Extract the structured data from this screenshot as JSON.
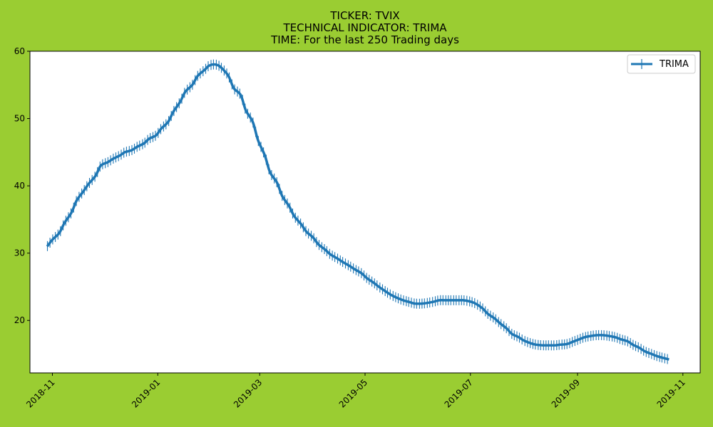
{
  "chart_data": {
    "type": "line",
    "title_lines": [
      "TICKER:  TVIX",
      "TECHNICAL INDICATOR:  TRIMA",
      "TIME: For the last 250 Trading days"
    ],
    "xlabel": "",
    "ylabel": "",
    "ylim": [
      12.2,
      60
    ],
    "xlim": [
      "2018-10-19",
      "2019-11-11"
    ],
    "yticks": [
      20,
      30,
      40,
      50,
      60
    ],
    "xticks": [
      "2018-11",
      "2019-01",
      "2019-03",
      "2019-05",
      "2019-07",
      "2019-09",
      "2019-11"
    ],
    "legend": {
      "position": "top-right",
      "entries": [
        "TRIMA"
      ]
    },
    "colors": {
      "background": "#9acd32",
      "plot_area": "#ffffff",
      "series": "#1f77b4"
    },
    "marker": "vertical-line",
    "grid": false,
    "series": [
      {
        "name": "TRIMA",
        "points": [
          [
            "2018-10-29",
            31.0
          ],
          [
            "2018-11-01",
            32.0
          ],
          [
            "2018-11-05",
            33.0
          ],
          [
            "2018-11-08",
            34.5
          ],
          [
            "2018-11-12",
            36.0
          ],
          [
            "2018-11-15",
            37.8
          ],
          [
            "2018-11-19",
            39.2
          ],
          [
            "2018-11-22",
            40.3
          ],
          [
            "2018-11-26",
            41.5
          ],
          [
            "2018-11-29",
            43.0
          ],
          [
            "2018-12-03",
            43.5
          ],
          [
            "2018-12-06",
            44.0
          ],
          [
            "2018-12-10",
            44.5
          ],
          [
            "2018-12-13",
            45.0
          ],
          [
            "2018-12-17",
            45.3
          ],
          [
            "2018-12-20",
            45.8
          ],
          [
            "2018-12-24",
            46.3
          ],
          [
            "2018-12-27",
            47.0
          ],
          [
            "2018-12-31",
            47.5
          ],
          [
            "2019-01-03",
            48.5
          ],
          [
            "2019-01-07",
            49.5
          ],
          [
            "2019-01-10",
            51.0
          ],
          [
            "2019-01-14",
            52.5
          ],
          [
            "2019-01-17",
            54.0
          ],
          [
            "2019-01-21",
            55.0
          ],
          [
            "2019-01-24",
            56.3
          ],
          [
            "2019-01-28",
            57.2
          ],
          [
            "2019-01-31",
            57.9
          ],
          [
            "2019-02-04",
            58.0
          ],
          [
            "2019-02-07",
            57.5
          ],
          [
            "2019-02-11",
            56.3
          ],
          [
            "2019-02-14",
            54.5
          ],
          [
            "2019-02-18",
            53.5
          ],
          [
            "2019-02-21",
            51.2
          ],
          [
            "2019-02-25",
            49.5
          ],
          [
            "2019-02-28",
            46.8
          ],
          [
            "2019-03-04",
            44.5
          ],
          [
            "2019-03-07",
            42.0
          ],
          [
            "2019-03-11",
            40.5
          ],
          [
            "2019-03-14",
            38.5
          ],
          [
            "2019-03-18",
            37.0
          ],
          [
            "2019-03-21",
            35.5
          ],
          [
            "2019-03-25",
            34.3
          ],
          [
            "2019-03-28",
            33.2
          ],
          [
            "2019-04-01",
            32.3
          ],
          [
            "2019-04-04",
            31.3
          ],
          [
            "2019-04-08",
            30.5
          ],
          [
            "2019-04-11",
            29.8
          ],
          [
            "2019-04-15",
            29.2
          ],
          [
            "2019-04-18",
            28.7
          ],
          [
            "2019-04-22",
            28.1
          ],
          [
            "2019-04-25",
            27.6
          ],
          [
            "2019-04-29",
            27.0
          ],
          [
            "2019-05-02",
            26.3
          ],
          [
            "2019-05-06",
            25.6
          ],
          [
            "2019-05-09",
            25.0
          ],
          [
            "2019-05-13",
            24.3
          ],
          [
            "2019-05-16",
            23.8
          ],
          [
            "2019-05-20",
            23.3
          ],
          [
            "2019-05-23",
            23.0
          ],
          [
            "2019-05-27",
            22.7
          ],
          [
            "2019-05-30",
            22.5
          ],
          [
            "2019-06-03",
            22.5
          ],
          [
            "2019-06-06",
            22.6
          ],
          [
            "2019-06-10",
            22.8
          ],
          [
            "2019-06-13",
            23.0
          ],
          [
            "2019-06-17",
            23.0
          ],
          [
            "2019-06-20",
            23.0
          ],
          [
            "2019-06-24",
            23.0
          ],
          [
            "2019-06-27",
            23.0
          ],
          [
            "2019-07-01",
            22.8
          ],
          [
            "2019-07-04",
            22.5
          ],
          [
            "2019-07-08",
            21.8
          ],
          [
            "2019-07-11",
            21.0
          ],
          [
            "2019-07-15",
            20.3
          ],
          [
            "2019-07-18",
            19.6
          ],
          [
            "2019-07-22",
            18.8
          ],
          [
            "2019-07-25",
            18.0
          ],
          [
            "2019-07-29",
            17.5
          ],
          [
            "2019-08-01",
            17.0
          ],
          [
            "2019-08-05",
            16.6
          ],
          [
            "2019-08-08",
            16.4
          ],
          [
            "2019-08-12",
            16.3
          ],
          [
            "2019-08-15",
            16.3
          ],
          [
            "2019-08-19",
            16.3
          ],
          [
            "2019-08-22",
            16.4
          ],
          [
            "2019-08-26",
            16.5
          ],
          [
            "2019-08-29",
            16.8
          ],
          [
            "2019-09-02",
            17.2
          ],
          [
            "2019-09-05",
            17.5
          ],
          [
            "2019-09-09",
            17.7
          ],
          [
            "2019-09-12",
            17.8
          ],
          [
            "2019-09-16",
            17.8
          ],
          [
            "2019-09-19",
            17.7
          ],
          [
            "2019-09-23",
            17.5
          ],
          [
            "2019-09-26",
            17.2
          ],
          [
            "2019-09-30",
            16.9
          ],
          [
            "2019-10-03",
            16.4
          ],
          [
            "2019-10-07",
            15.9
          ],
          [
            "2019-10-10",
            15.4
          ],
          [
            "2019-10-14",
            15.0
          ],
          [
            "2019-10-17",
            14.7
          ],
          [
            "2019-10-21",
            14.4
          ],
          [
            "2019-10-24",
            14.2
          ]
        ]
      }
    ]
  }
}
